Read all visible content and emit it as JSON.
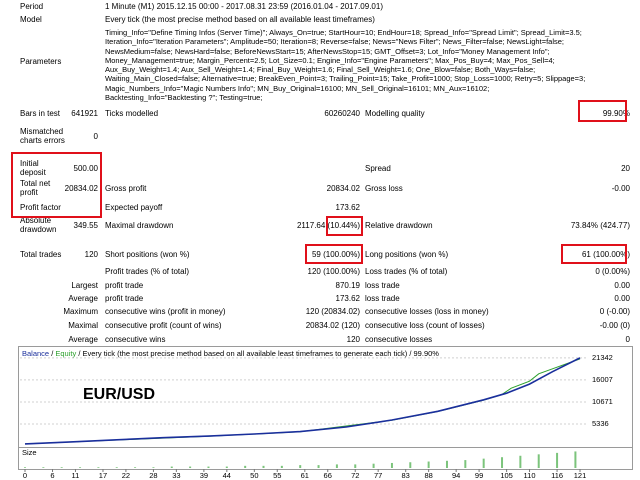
{
  "report": {
    "period": {
      "label": "Period",
      "value": "1 Minute (M1) 2015.12.15 00:00 - 2017.08.31 23:59 (2016.01.04 - 2017.09.01)"
    },
    "model": {
      "label": "Model",
      "value": "Every tick (the most precise method based on all available least timeframes)"
    },
    "parameters": {
      "label": "Parameters",
      "lines": [
        "Timing_Info=\"Define Timing Infos (Server Time)\"; Always_On=true; StartHour=10; EndHour=18; Spread_Info=\"Spread Limit\"; Spread_Limit=3.5;",
        "Iteration_Info=\"Iteration Parameters\"; Amplitude=50; Iteration=8; Reverse=false; News=\"News Filter\"; News_Filter=false; NewsLight=false;",
        "NewsMedium=false; NewsHard=false; BeforeNewsStart=15; AfterNewsStop=15; GMT_Offset=3; Lot_Info=\"Money Management Info\";",
        "Money_Management=true; Margin_Percent=2.5; Lot_Size=0.1; Engine_Info=\"Engine Parameters\"; Max_Pos_Buy=4; Max_Pos_Sell=4;",
        "Aux_Buy_Weight=1.4; Aux_Sell_Weight=1.4; Final_Buy_Weight=1.6; Final_Sell_Weight=1.6; One_Blow=false; Both_Ways=false;",
        "Waiting_Main_Closed=false; Alternative=true; BreakEven_Point=3; Trailing_Point=15; Take_Profit=1000; Stop_Loss=1000; Retry=5; Slippage=3;",
        "Magic_Numbers_Info=\"Magic Numbers Info\"; MN_Buy_Original=16100; MN_Sell_Original=16101; MN_Aux=16102;",
        "Backtesting_Info=\"Backtesting ?\"; Testing=true;"
      ]
    },
    "stats": [
      [
        "Bars in test",
        "641921",
        "Ticks modelled",
        "60260240",
        "Modelling quality",
        "99.90%"
      ],
      [
        "Mismatched charts errors",
        "0"
      ],
      [
        "Initial deposit",
        "500.00",
        "Spread",
        "20"
      ],
      [
        "Total net profit",
        "20834.02",
        "Gross profit",
        "20834.02",
        "Gross loss",
        "-0.00"
      ],
      [
        "Profit factor",
        "Expected payoff",
        "173.62"
      ],
      [
        "Absolute drawdown",
        "349.55",
        "Maximal drawdown",
        "2117.64 (10.44%)",
        "Relative drawdown",
        "73.84% (424.77)"
      ],
      [
        "Total trades",
        "120",
        "Short positions (won %)",
        "59 (100.00%)",
        "Long positions (won %)",
        "61 (100.00%)"
      ],
      [
        "Profit trades (% of total)",
        "120 (100.00%)",
        "Loss trades (% of total)",
        "0 (0.00%)"
      ],
      [
        "Largest",
        "profit trade",
        "870.19",
        "loss trade",
        "0.00"
      ],
      [
        "Average",
        "profit trade",
        "173.62",
        "loss trade",
        "0.00"
      ],
      [
        "Maximum",
        "consecutive wins (profit in money)",
        "120 (20834.02)",
        "consecutive losses (loss in money)",
        "0 (-0.00)"
      ],
      [
        "Maximal",
        "consecutive profit (count of wins)",
        "20834.02 (120)",
        "consecutive loss (count of losses)",
        "-0.00 (0)"
      ],
      [
        "Average",
        "consecutive wins",
        "120",
        "consecutive losses",
        "0"
      ]
    ]
  },
  "chart_data": [
    {
      "type": "line",
      "subtitle": "Every tick (the most precise method based on all available least timeframes to generate each tick)",
      "quality": "99.90%",
      "annotation": "EUR/USD",
      "series": [
        {
          "name": "Balance",
          "color": "#1a2f9c",
          "x": [
            0,
            10,
            20,
            30,
            40,
            50,
            60,
            70,
            80,
            90,
            100,
            105,
            110,
            115,
            121
          ],
          "values": [
            500,
            1000,
            1500,
            2000,
            2400,
            2900,
            3500,
            4600,
            6300,
            8400,
            11200,
            12800,
            15000,
            18000,
            21342
          ]
        },
        {
          "name": "Equity",
          "color": "#2ca02c",
          "x": [
            0,
            20,
            40,
            60,
            80,
            90,
            100,
            104,
            106,
            110,
            112,
            115,
            121
          ],
          "values": [
            500,
            1450,
            2350,
            3450,
            6250,
            8350,
            11100,
            12500,
            14000,
            15700,
            17500,
            18700,
            21100
          ]
        }
      ],
      "xlim": [
        0,
        121
      ],
      "ylim": [
        0,
        23500
      ],
      "yticks": [
        5336,
        10671,
        16007,
        21342
      ],
      "grid": true
    },
    {
      "type": "bar",
      "title": "Size",
      "color": "#7cc47c",
      "x": [
        0,
        4,
        8,
        12,
        16,
        20,
        24,
        28,
        32,
        36,
        40,
        44,
        48,
        52,
        56,
        60,
        64,
        68,
        72,
        76,
        80,
        84,
        88,
        92,
        96,
        100,
        104,
        108,
        112,
        116,
        120
      ],
      "values": [
        0.1,
        0.1,
        0.1,
        0.1,
        0.1,
        0.1,
        0.1,
        0.1,
        0.2,
        0.2,
        0.2,
        0.2,
        0.3,
        0.3,
        0.3,
        0.4,
        0.4,
        0.5,
        0.5,
        0.6,
        0.7,
        0.8,
        0.9,
        1.0,
        1.1,
        1.3,
        1.5,
        1.7,
        1.9,
        2.1,
        2.3
      ],
      "xlim": [
        0,
        121
      ],
      "ylim": [
        0,
        2.5
      ],
      "xticks": [
        0,
        6,
        11,
        17,
        22,
        28,
        33,
        39,
        44,
        50,
        55,
        61,
        66,
        72,
        77,
        83,
        88,
        94,
        99,
        105,
        110,
        116,
        121
      ]
    }
  ]
}
